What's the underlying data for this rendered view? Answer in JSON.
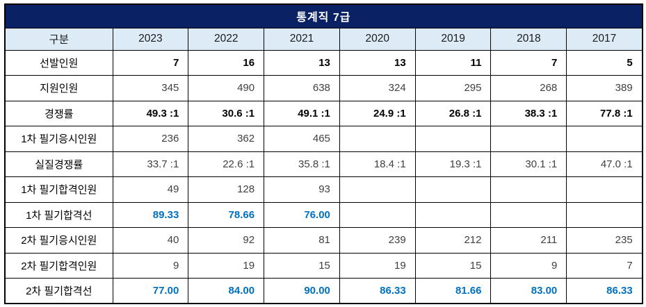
{
  "table": {
    "title": "통계직 7급",
    "columns": [
      "구분",
      "2023",
      "2022",
      "2021",
      "2020",
      "2019",
      "2018",
      "2017"
    ],
    "rows": [
      {
        "label": "선발인원",
        "style": "bold",
        "values": [
          "7",
          "16",
          "13",
          "13",
          "11",
          "7",
          "5"
        ]
      },
      {
        "label": "지원인원",
        "style": "normal",
        "values": [
          "345",
          "490",
          "638",
          "324",
          "295",
          "268",
          "389"
        ]
      },
      {
        "label": "경쟁률",
        "style": "bold",
        "values": [
          "49.3 :1",
          "30.6 :1",
          "49.1 :1",
          "24.9 :1",
          "26.8 :1",
          "38.3 :1",
          "77.8 :1"
        ]
      },
      {
        "label": "1차 필기응시인원",
        "style": "normal",
        "values": [
          "236",
          "362",
          "465",
          "",
          "",
          "",
          ""
        ]
      },
      {
        "label": "실질경쟁률",
        "style": "normal",
        "values": [
          "33.7 :1",
          "22.6 :1",
          "35.8 :1",
          "18.4 :1",
          "19.3 :1",
          "30.1 :1",
          "47.0 :1"
        ]
      },
      {
        "label": "1차 필기합격인원",
        "style": "normal",
        "values": [
          "49",
          "128",
          "93",
          "",
          "",
          "",
          ""
        ]
      },
      {
        "label": "1차 필기합격선",
        "style": "score",
        "values": [
          "89.33",
          "78.66",
          "76.00",
          "",
          "",
          "",
          ""
        ]
      },
      {
        "label": "2차 필기응시인원",
        "style": "normal",
        "values": [
          "40",
          "92",
          "81",
          "239",
          "212",
          "211",
          "235"
        ]
      },
      {
        "label": "2차 필기합격인원",
        "style": "normal",
        "values": [
          "9",
          "19",
          "15",
          "19",
          "15",
          "9",
          "7"
        ]
      },
      {
        "label": "2차 필기합격선",
        "style": "score",
        "values": [
          "77.00",
          "84.00",
          "90.00",
          "86.33",
          "81.66",
          "83.00",
          "86.33"
        ]
      }
    ],
    "colors": {
      "title_bg": "#0A2263",
      "title_text": "#FFFFFF",
      "header_bg": "#DDEBF7",
      "border": "#000000",
      "value_text": "#3F3F3F",
      "bold_text": "#000000",
      "score_text": "#0070C0"
    }
  }
}
